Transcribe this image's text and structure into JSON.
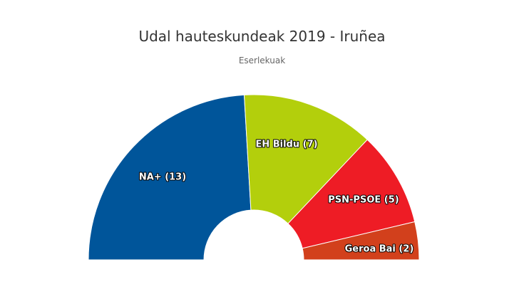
{
  "chart_data": {
    "type": "pie",
    "variant": "semicircle-parliament",
    "title": "Udal hauteskundeak 2019 - Iruñea",
    "subtitle": "Eserlekuak",
    "series": [
      {
        "name": "NA+",
        "value": 13,
        "label": "NA+ (13)",
        "color": "#00559a"
      },
      {
        "name": "EH Bildu",
        "value": 7,
        "label": "EH Bildu (7)",
        "color": "#b3cf0c"
      },
      {
        "name": "PSN-PSOE",
        "value": 5,
        "label": "PSN-PSOE (5)",
        "color": "#ee1c25"
      },
      {
        "name": "Geroa Bai",
        "value": 2,
        "label": "Geroa Bai (2)",
        "color": "#d2401c"
      }
    ]
  }
}
